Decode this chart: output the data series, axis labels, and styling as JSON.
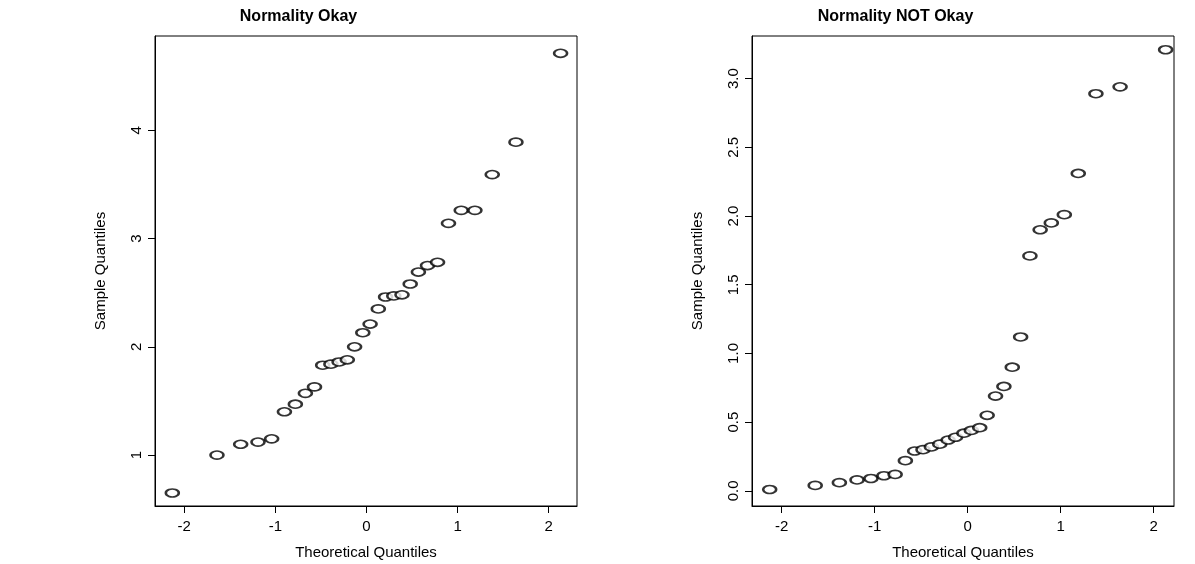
{
  "chart_data": [
    {
      "type": "scatter",
      "title": "Normality Okay",
      "xlabel": "Theoretical Quantiles",
      "ylabel": "Sample Quantiles",
      "marker": "circle",
      "x": [
        -2.13,
        -1.64,
        -1.38,
        -1.19,
        -1.04,
        -0.9,
        -0.78,
        -0.67,
        -0.57,
        -0.48,
        -0.39,
        -0.3,
        -0.21,
        -0.13,
        -0.04,
        0.04,
        0.13,
        0.21,
        0.3,
        0.39,
        0.48,
        0.57,
        0.67,
        0.78,
        0.9,
        1.04,
        1.19,
        1.38,
        1.64,
        2.13
      ],
      "series": [
        {
          "color": "#000000",
          "values": [
            0.65,
            1.0,
            1.1,
            1.12,
            1.15,
            1.4,
            1.47,
            1.57,
            1.63,
            1.83,
            1.84,
            1.86,
            1.88,
            2.0,
            2.13,
            2.21,
            2.35,
            2.46,
            2.47,
            2.48,
            2.58,
            2.69,
            2.75,
            2.78,
            3.14,
            3.26,
            3.26,
            3.59,
            3.89,
            4.71
          ]
        }
      ],
      "xlim": [
        -2.32,
        2.31
      ],
      "xticks": [
        -2,
        -1,
        0,
        1,
        2
      ],
      "ylim": [
        0.53,
        4.87
      ],
      "yticks": [
        1,
        2,
        3,
        4
      ]
    },
    {
      "type": "scatter",
      "title": "Normality NOT Okay",
      "xlabel": "Theoretical Quantiles",
      "ylabel": "Sample Quantiles",
      "marker": "circle",
      "x": [
        -2.13,
        -1.64,
        -1.38,
        -1.19,
        -1.04,
        -0.9,
        -0.78,
        -0.67,
        -0.57,
        -0.48,
        -0.39,
        -0.3,
        -0.21,
        -0.13,
        -0.04,
        0.04,
        0.13,
        0.21,
        0.3,
        0.39,
        0.48,
        0.57,
        0.67,
        0.78,
        0.9,
        1.04,
        1.19,
        1.38,
        1.64,
        2.13
      ],
      "series": [
        {
          "color": "#000000",
          "values": [
            0.01,
            0.04,
            0.06,
            0.08,
            0.09,
            0.11,
            0.12,
            0.22,
            0.29,
            0.3,
            0.32,
            0.34,
            0.37,
            0.39,
            0.42,
            0.44,
            0.46,
            0.55,
            0.69,
            0.76,
            0.9,
            1.12,
            1.71,
            1.9,
            1.95,
            2.01,
            2.31,
            2.89,
            2.94,
            3.21
          ]
        }
      ],
      "xlim": [
        -2.32,
        2.22
      ],
      "xticks": [
        -2,
        -1,
        0,
        1,
        2
      ],
      "ylim": [
        -0.11,
        3.31
      ],
      "yticks": [
        {
          "value": 0,
          "label": "0.0"
        },
        {
          "value": 0.5,
          "label": "0.5"
        },
        {
          "value": 1,
          "label": "1.0"
        },
        {
          "value": 1.5,
          "label": "1.5"
        },
        {
          "value": 2,
          "label": "2.0"
        },
        {
          "value": 2.5,
          "label": "2.5"
        },
        {
          "value": 3,
          "label": "3.0"
        }
      ]
    }
  ]
}
